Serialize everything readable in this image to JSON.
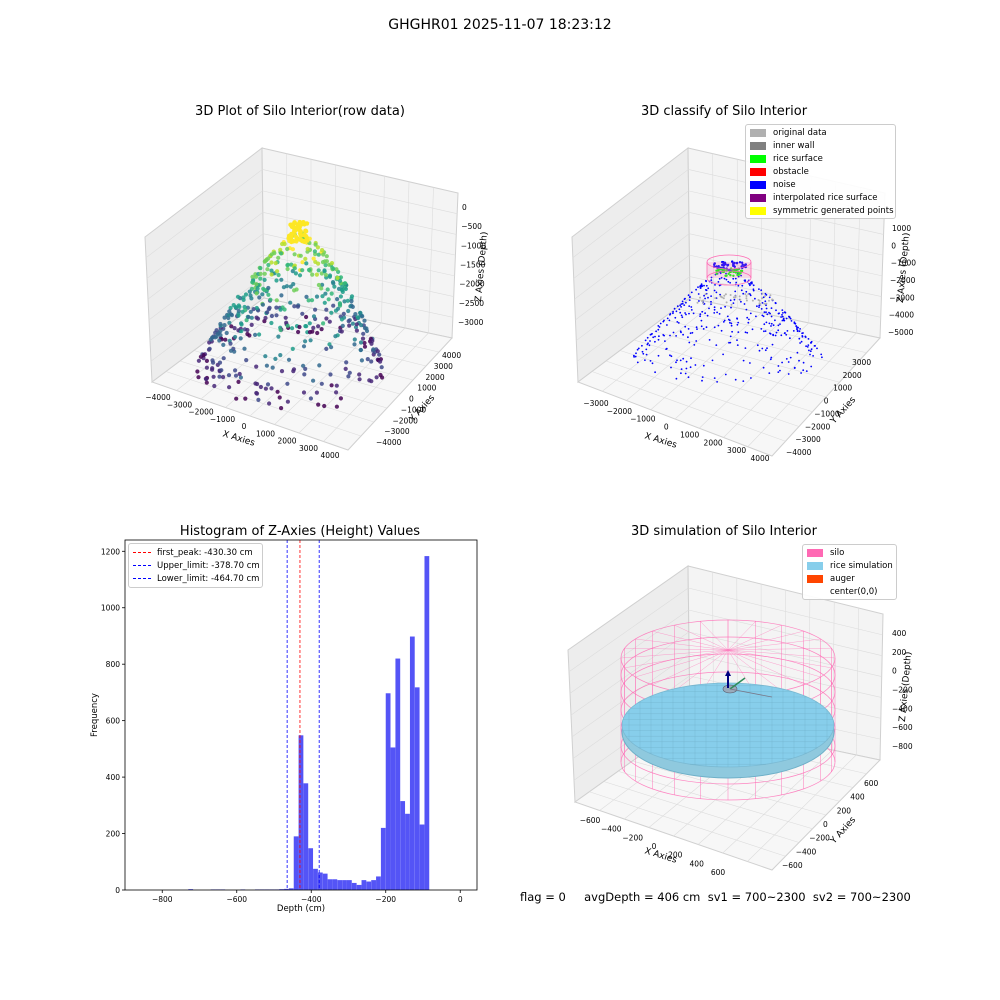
{
  "suptitle": "GHGHR01 2025-11-07 18:23:12",
  "footer": "flag = 0     avgDepth = 406 cm  sv1 = 700~2300  sv2 = 700~2300",
  "colors": {
    "histogram_bar": "#4b4bf5",
    "first_peak": "#ff0000",
    "limits": "#0000ff",
    "silo": "#ff69b4",
    "rice_simulation": "#87ceeb",
    "auger": "#ff4500"
  },
  "chart_data": [
    {
      "type": "scatter",
      "projection": "3d",
      "title": "3D Plot of Silo Interior(row data)",
      "xlabel": "X Axies",
      "ylabel": "Y Axies",
      "zlabel": "Z Axies (Depth)",
      "xticks": [
        "−4000",
        "−3000",
        "−2000",
        "−1000",
        "0",
        "1000",
        "2000",
        "3000",
        "4000"
      ],
      "yticks": [
        "4000",
        "3000",
        "2000",
        "1000",
        "0",
        "−1000",
        "−2000",
        "−3000",
        "−4000"
      ],
      "zticks": [
        "0",
        "−500",
        "−1000",
        "−1500",
        "−2000",
        "−2500",
        "−3000"
      ],
      "xlim": [
        -4000,
        4000
      ],
      "ylim": [
        -4000,
        4000
      ],
      "zlim": [
        -3400,
        0
      ],
      "colormap": "viridis",
      "grid": true
    },
    {
      "type": "scatter",
      "projection": "3d",
      "title": "3D classify of Silo Interior",
      "xlabel": "X Axies",
      "ylabel": "Y Axies",
      "zlabel": "Z Axies (Depth)",
      "xticks": [
        "−3000",
        "−2000",
        "−1000",
        "0",
        "1000",
        "2000",
        "3000",
        "4000"
      ],
      "yticks": [
        "3000",
        "2000",
        "1000",
        "0",
        "−1000",
        "−2000",
        "−3000",
        "−4000"
      ],
      "zticks": [
        "1000",
        "0",
        "−1000",
        "−2000",
        "−3000",
        "−4000",
        "−5000"
      ],
      "legend_position": "top-right",
      "legend": [
        {
          "label": "original data",
          "color": "#b0b0b0"
        },
        {
          "label": "inner wall",
          "color": "#808080"
        },
        {
          "label": "rice surface",
          "color": "#00ff00"
        },
        {
          "label": "obstacle",
          "color": "#ff0000"
        },
        {
          "label": "noise",
          "color": "#0000ff"
        },
        {
          "label": "interpolated rice surface",
          "color": "#800080"
        },
        {
          "label": "symmetric generated points",
          "color": "#ffff00"
        }
      ],
      "grid": true
    },
    {
      "type": "bar",
      "title": "Histogram of Z-Axies (Height) Values",
      "xlabel": "Depth (cm)",
      "ylabel": "Frequency",
      "xlim": [
        -900,
        45
      ],
      "ylim": [
        0,
        1240
      ],
      "xticks": [
        "−800",
        "−600",
        "−400",
        "−200",
        "0"
      ],
      "xtick_values": [
        -800,
        -600,
        -400,
        -200,
        0
      ],
      "yticks": [
        "0",
        "200",
        "400",
        "600",
        "800",
        "1000",
        "1200"
      ],
      "ytick_values": [
        0,
        200,
        400,
        600,
        800,
        1000,
        1200
      ],
      "bin_width": 12.8,
      "bins": [
        {
          "x": -730,
          "y": 3
        },
        {
          "x": -670,
          "y": 2
        },
        {
          "x": -657,
          "y": 2
        },
        {
          "x": -644,
          "y": 2
        },
        {
          "x": -590,
          "y": 2
        },
        {
          "x": -551,
          "y": 2
        },
        {
          "x": -538,
          "y": 2
        },
        {
          "x": -525,
          "y": 2
        },
        {
          "x": -512,
          "y": 2
        },
        {
          "x": -499,
          "y": 2
        },
        {
          "x": -486,
          "y": 3
        },
        {
          "x": -473,
          "y": 4
        },
        {
          "x": -460,
          "y": 6
        },
        {
          "x": -447,
          "y": 190
        },
        {
          "x": -434,
          "y": 548
        },
        {
          "x": -421,
          "y": 378
        },
        {
          "x": -408,
          "y": 148
        },
        {
          "x": -395,
          "y": 75
        },
        {
          "x": -382,
          "y": 62
        },
        {
          "x": -369,
          "y": 58
        },
        {
          "x": -356,
          "y": 38
        },
        {
          "x": -343,
          "y": 38
        },
        {
          "x": -330,
          "y": 35
        },
        {
          "x": -317,
          "y": 35
        },
        {
          "x": -304,
          "y": 35
        },
        {
          "x": -291,
          "y": 25
        },
        {
          "x": -278,
          "y": 18
        },
        {
          "x": -265,
          "y": 35
        },
        {
          "x": -252,
          "y": 30
        },
        {
          "x": -239,
          "y": 35
        },
        {
          "x": -226,
          "y": 48
        },
        {
          "x": -213,
          "y": 220
        },
        {
          "x": -200,
          "y": 697
        },
        {
          "x": -187,
          "y": 505
        },
        {
          "x": -174,
          "y": 820
        },
        {
          "x": -161,
          "y": 315
        },
        {
          "x": -148,
          "y": 270
        },
        {
          "x": -135,
          "y": 898
        },
        {
          "x": -122,
          "y": 718
        },
        {
          "x": -109,
          "y": 232
        },
        {
          "x": -96,
          "y": 1183
        }
      ],
      "vlines": [
        {
          "label": "first_peak: -430.30 cm",
          "x": -430.3,
          "color": "#ff0000"
        },
        {
          "label": "Upper_limit: -378.70 cm",
          "x": -378.7,
          "color": "#0000ff"
        },
        {
          "label": "Lower_limit: -464.70 cm",
          "x": -464.7,
          "color": "#0000ff"
        }
      ],
      "legend_position": "top-left",
      "grid": false
    },
    {
      "type": "scatter",
      "projection": "3d",
      "title": "3D simulation of Silo Interior",
      "xlabel": "X Axies",
      "ylabel": "Y Axies",
      "zlabel": "Z Axies (Depth)",
      "xticks": [
        "−600",
        "−400",
        "−200",
        "0",
        "200",
        "400",
        "600"
      ],
      "yticks": [
        "600",
        "400",
        "200",
        "0",
        "−200",
        "−400",
        "−600"
      ],
      "zticks": [
        "400",
        "200",
        "0",
        "−200",
        "−400",
        "−600",
        "−800"
      ],
      "legend_position": "top-right",
      "legend": [
        {
          "label": "silo",
          "color": "#ff69b4"
        },
        {
          "label": "rice simulation",
          "color": "#87ceeb"
        },
        {
          "label": "auger",
          "color": "#ff4500"
        },
        {
          "label": "center(0,0)",
          "color": ""
        }
      ],
      "grid": true
    }
  ]
}
